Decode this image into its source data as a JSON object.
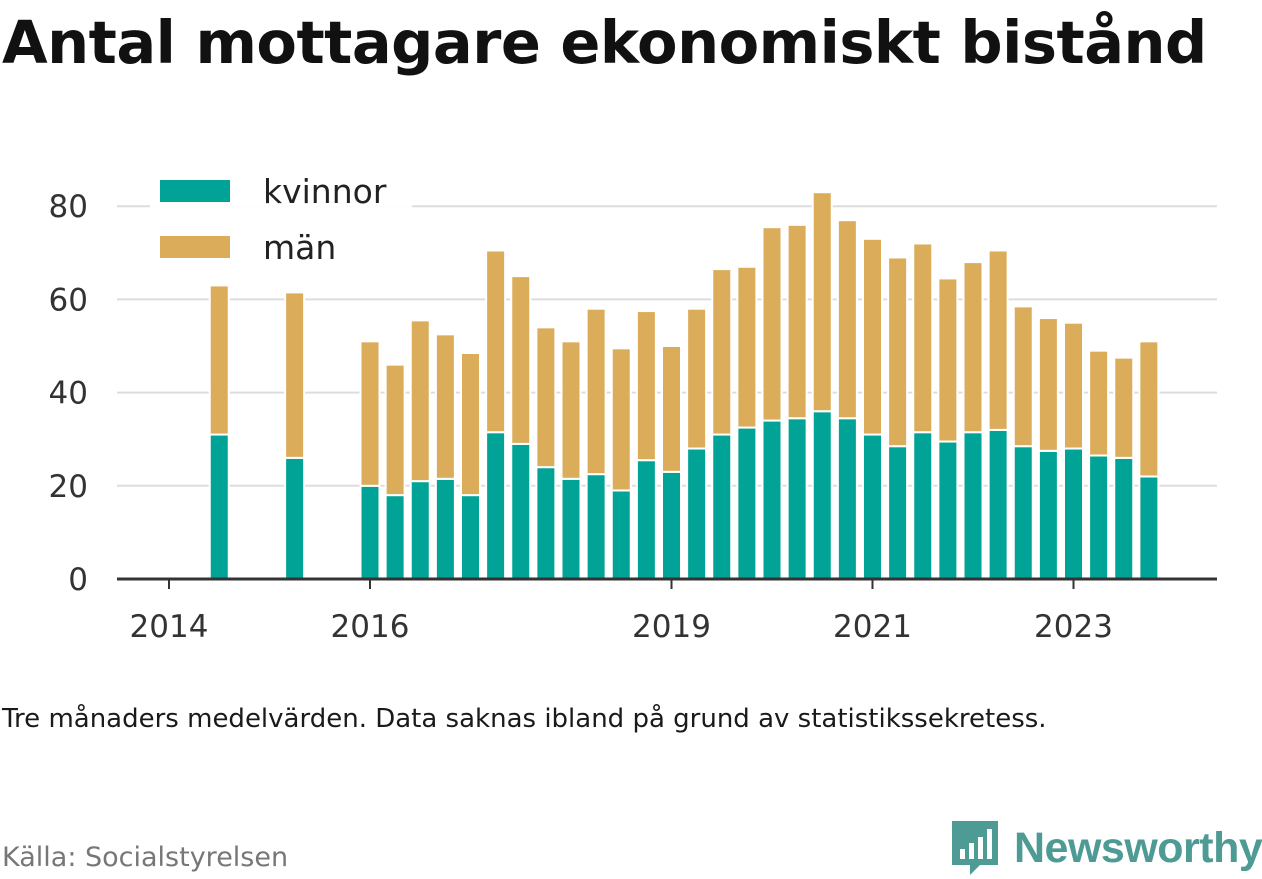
{
  "title": "Antal mottagare ekonomiskt bistånd",
  "note": "Tre månaders medelvärden. Data saknas ibland på grund av statistikssekretess.",
  "source": "Källa: Socialstyrelsen",
  "brand": {
    "name": "Newsworthy",
    "icon": "newsworthy-logo-icon",
    "color": "#4e9a94"
  },
  "chart_data": {
    "type": "bar",
    "stacked": true,
    "ylim": [
      0,
      85
    ],
    "yticks": [
      0,
      20,
      40,
      60,
      80
    ],
    "grid": true,
    "legend": "top-left",
    "xticks": [
      {
        "label": "2014",
        "x": 2014.0
      },
      {
        "label": "2016",
        "x": 2016.0
      },
      {
        "label": "2019",
        "x": 2019.0
      },
      {
        "label": "2021",
        "x": 2021.0
      },
      {
        "label": "2023",
        "x": 2023.0
      }
    ],
    "x": [
      2014.5,
      2015.25,
      2016.0,
      2016.25,
      2016.5,
      2016.75,
      2017.0,
      2017.25,
      2017.5,
      2017.75,
      2018.0,
      2018.25,
      2018.5,
      2018.75,
      2019.0,
      2019.25,
      2019.5,
      2019.75,
      2020.0,
      2020.25,
      2020.5,
      2020.75,
      2021.0,
      2021.25,
      2021.5,
      2021.75,
      2022.0,
      2022.25,
      2022.5,
      2022.75,
      2023.0,
      2023.25,
      2023.5,
      2023.75
    ],
    "series": [
      {
        "name": "kvinnor",
        "color": "#00a396",
        "values": [
          31,
          26,
          20,
          18,
          21,
          21.5,
          18,
          31.5,
          29,
          24,
          21.5,
          22.5,
          19,
          25.5,
          23,
          28,
          31,
          32.5,
          34,
          34.5,
          36,
          34.5,
          31,
          28.5,
          31.5,
          29.5,
          31.5,
          32,
          28.5,
          27.5,
          28,
          26.5,
          26,
          22
        ]
      },
      {
        "name": "män",
        "color": "#dbad5b",
        "values": [
          32,
          35.5,
          31,
          28,
          34.5,
          31,
          30.5,
          39,
          36,
          30,
          29.5,
          35.5,
          30.5,
          32,
          27,
          30,
          35.5,
          34.5,
          41.5,
          41.5,
          47,
          42.5,
          42,
          40.5,
          40.5,
          35,
          36.5,
          38.5,
          30,
          28.5,
          27,
          22.5,
          21.5,
          29
        ]
      }
    ]
  }
}
